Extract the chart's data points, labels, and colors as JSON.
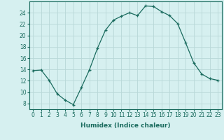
{
  "x": [
    0,
    1,
    2,
    3,
    4,
    5,
    6,
    7,
    8,
    9,
    10,
    11,
    12,
    13,
    14,
    15,
    16,
    17,
    18,
    19,
    20,
    21,
    22,
    23
  ],
  "y": [
    13.8,
    13.9,
    12.1,
    9.7,
    8.6,
    7.8,
    10.8,
    13.9,
    17.7,
    20.9,
    22.7,
    23.4,
    24.0,
    23.5,
    25.2,
    25.1,
    24.2,
    23.5,
    22.1,
    18.7,
    15.2,
    13.2,
    12.4,
    12.1
  ],
  "line_color": "#1a6b5e",
  "marker": "+",
  "bg_color": "#d6f0f0",
  "grid_color": "#b8d8d8",
  "xlabel": "Humidex (Indice chaleur)",
  "ylim": [
    7,
    26
  ],
  "xlim": [
    -0.5,
    23.5
  ],
  "yticks": [
    8,
    10,
    12,
    14,
    16,
    18,
    20,
    22,
    24
  ],
  "xticks": [
    0,
    1,
    2,
    3,
    4,
    5,
    6,
    7,
    8,
    9,
    10,
    11,
    12,
    13,
    14,
    15,
    16,
    17,
    18,
    19,
    20,
    21,
    22,
    23
  ],
  "xlabel_fontsize": 6.5,
  "tick_fontsize": 5.5
}
